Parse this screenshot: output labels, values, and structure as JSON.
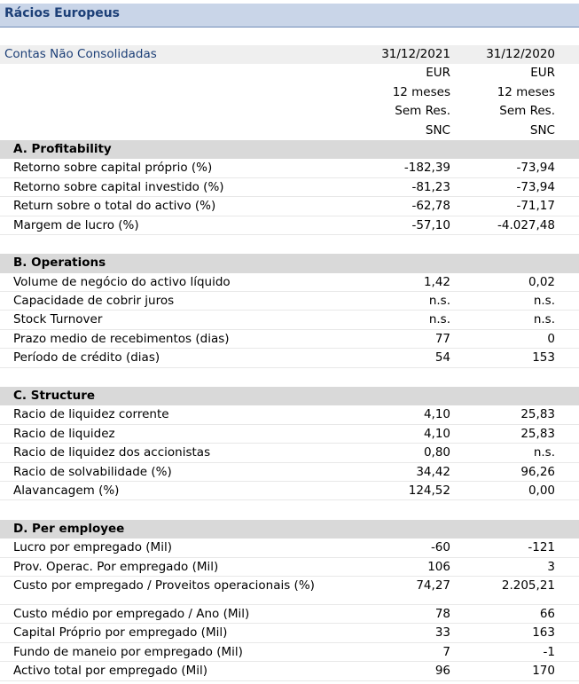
{
  "title": "Rácios Europeus",
  "header": {
    "label": "Contas Não Consolidadas",
    "columns": [
      {
        "date": "31/12/2021",
        "currency": "EUR",
        "period": "12 meses",
        "status": "Sem Res.",
        "standard": "SNC"
      },
      {
        "date": "31/12/2020",
        "currency": "EUR",
        "period": "12 meses",
        "status": "Sem Res.",
        "standard": "SNC"
      }
    ]
  },
  "sections": {
    "a": {
      "title": "A. Profitability",
      "rows": [
        {
          "label": "Retorno sobre capital próprio (%)",
          "v1": "-182,39",
          "v2": "-73,94"
        },
        {
          "label": "Retorno sobre capital investido (%)",
          "v1": "-81,23",
          "v2": "-73,94"
        },
        {
          "label": "Return sobre o total do activo (%)",
          "v1": "-62,78",
          "v2": "-71,17"
        },
        {
          "label": "Margem de lucro (%)",
          "v1": "-57,10",
          "v2": "-4.027,48"
        }
      ]
    },
    "b": {
      "title": "B. Operations",
      "rows": [
        {
          "label": "Volume de negócio do activo líquido",
          "v1": "1,42",
          "v2": "0,02"
        },
        {
          "label": "Capacidade de cobrir juros",
          "v1": "n.s.",
          "v2": "n.s."
        },
        {
          "label": "Stock Turnover",
          "v1": "n.s.",
          "v2": "n.s."
        },
        {
          "label": "Prazo medio de recebimentos (dias)",
          "v1": "77",
          "v2": "0"
        },
        {
          "label": "Período de crédito (dias)",
          "v1": "54",
          "v2": "153"
        }
      ]
    },
    "c": {
      "title": "C. Structure",
      "rows": [
        {
          "label": "Racio de liquidez corrente",
          "v1": "4,10",
          "v2": "25,83"
        },
        {
          "label": "Racio de liquidez",
          "v1": "4,10",
          "v2": "25,83"
        },
        {
          "label": "Racio de liquidez dos accionistas",
          "v1": "0,80",
          "v2": "n.s."
        },
        {
          "label": "Racio de solvabilidade (%)",
          "v1": "34,42",
          "v2": "96,26"
        },
        {
          "label": "Alavancagem (%)",
          "v1": "124,52",
          "v2": "0,00"
        }
      ]
    },
    "d": {
      "title": "D. Per employee",
      "rows": [
        {
          "label": "Lucro por empregado (Mil)",
          "v1": "-60",
          "v2": "-121"
        },
        {
          "label": "Prov. Operac. Por empregado (Mil)",
          "v1": "106",
          "v2": "3"
        },
        {
          "label": "Custo por empregado / Proveitos operacionais (%)",
          "v1": "74,27",
          "v2": "2.205,21"
        }
      ],
      "rows2": [
        {
          "label": "Custo médio por empregado / Ano (Mil)",
          "v1": "78",
          "v2": "66"
        },
        {
          "label": "Capital Próprio por empregado (Mil)",
          "v1": "33",
          "v2": "163"
        },
        {
          "label": "Fundo de maneio por empregado (Mil)",
          "v1": "7",
          "v2": "-1"
        },
        {
          "label": "Activo total por empregado (Mil)",
          "v1": "96",
          "v2": "170"
        }
      ]
    }
  }
}
